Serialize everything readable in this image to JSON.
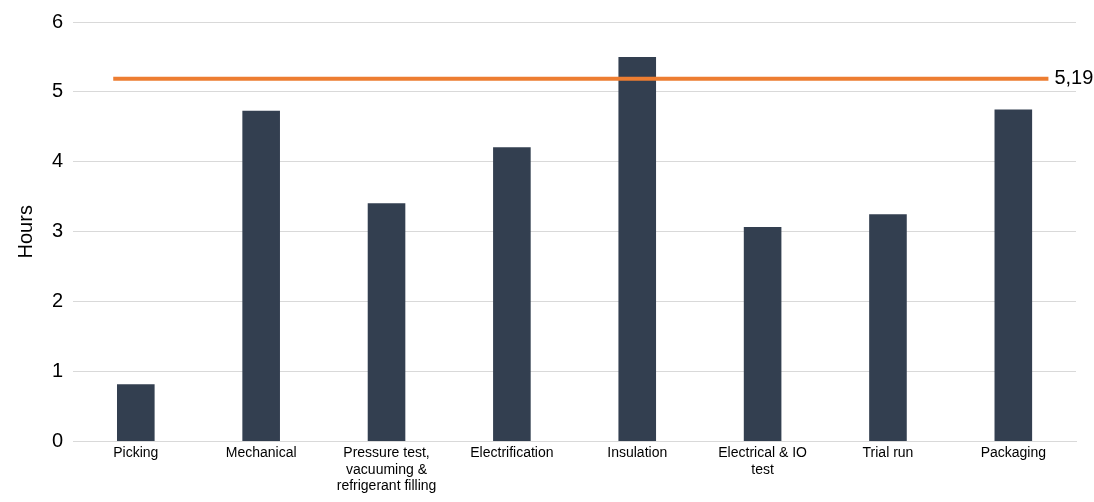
{
  "chart_data": {
    "type": "bar",
    "ylabel": "Hours",
    "categories": [
      "Picking",
      "Mechanical",
      "Pressure test, vacuuming & refrigerant filling",
      "Electrification",
      "Insulation",
      "Electrical & IO test",
      "Trial run",
      "Packaging"
    ],
    "values": [
      0.82,
      4.73,
      3.41,
      4.21,
      5.5,
      3.07,
      3.25,
      4.75
    ],
    "color": "#333f50",
    "ylim": [
      0,
      6
    ],
    "yticks": [
      0,
      1,
      2,
      3,
      4,
      5,
      6
    ],
    "grid": "y",
    "legend": false,
    "ref_lines": [
      {
        "axis": "y",
        "value": 5.19,
        "label": "5,19",
        "color": "#ed7d31"
      }
    ]
  }
}
